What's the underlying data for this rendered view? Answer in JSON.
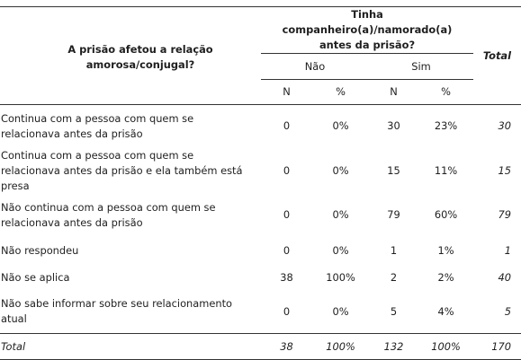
{
  "header": {
    "question": "A prisão afetou a relação amorosa/conjugal?",
    "group_title": "Tinha companheiro(a)/namorado(a) antes da prisão?",
    "total_label": "Total",
    "groups": [
      "Não",
      "Sim"
    ],
    "sub": {
      "n": "N",
      "pct": "%"
    }
  },
  "rows": [
    {
      "label": "Continua com a pessoa com quem se relacionava antes da prisão",
      "nao_n": "0",
      "nao_pct": "0%",
      "sim_n": "30",
      "sim_pct": "23%",
      "total": "30"
    },
    {
      "label": "Continua com a pessoa com quem se relacionava antes da prisão e ela também está presa",
      "nao_n": "0",
      "nao_pct": "0%",
      "sim_n": "15",
      "sim_pct": "11%",
      "total": "15"
    },
    {
      "label": "Não continua com a pessoa com quem se relacionava antes da prisão",
      "nao_n": "0",
      "nao_pct": "0%",
      "sim_n": "79",
      "sim_pct": "60%",
      "total": "79"
    },
    {
      "label": "Não respondeu",
      "nao_n": "0",
      "nao_pct": "0%",
      "sim_n": "1",
      "sim_pct": "1%",
      "total": "1"
    },
    {
      "label": "Não se aplica",
      "nao_n": "38",
      "nao_pct": "100%",
      "sim_n": "2",
      "sim_pct": "2%",
      "total": "40"
    },
    {
      "label": "Não sabe informar sobre seu relacionamento atual",
      "nao_n": "0",
      "nao_pct": "0%",
      "sim_n": "5",
      "sim_pct": "4%",
      "total": "5"
    }
  ],
  "footer": {
    "label": "Total",
    "nao_n": "38",
    "nao_pct": "100%",
    "sim_n": "132",
    "sim_pct": "100%",
    "total": "170"
  }
}
